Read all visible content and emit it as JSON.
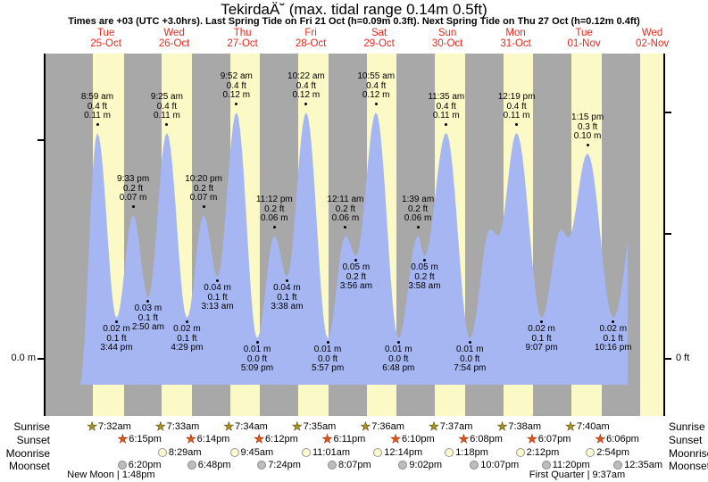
{
  "header": {
    "title": "TekirdaÄ˘ (max. tidal range 0.14m 0.5ft)",
    "subtitle": "Times are +03 (UTC +3.0hrs). Last Spring Tide on Fri 21 Oct (h=0.09m 0.3ft). Next Spring Tide on Thu 27 Oct (h=0.12m 0.4ft)"
  },
  "axes": {
    "left_zero_label": "0.0 m",
    "right_zero_label": "0 ft"
  },
  "chart_data": {
    "type": "area",
    "title": "TekirdaÄ˘ (max. tidal range 0.14m 0.5ft)",
    "ylabel_left": "0.0 m",
    "ylabel_right": "0 ft",
    "ylim_m": [
      -0.013,
      0.15
    ],
    "day_labels": [
      {
        "dow": "Tue",
        "date": "25-Oct"
      },
      {
        "dow": "Wed",
        "date": "26-Oct"
      },
      {
        "dow": "Thu",
        "date": "27-Oct"
      },
      {
        "dow": "Fri",
        "date": "28-Oct"
      },
      {
        "dow": "Sat",
        "date": "29-Oct"
      },
      {
        "dow": "Sun",
        "date": "30-Oct"
      },
      {
        "dow": "Mon",
        "date": "31-Oct"
      },
      {
        "dow": "Tue",
        "date": "01-Nov"
      },
      {
        "dow": "Wed",
        "date": "02-Nov"
      }
    ],
    "tide_events": [
      {
        "day": 0,
        "time": "8:59 am",
        "type": "high",
        "ft": "0.4",
        "m": "0.11"
      },
      {
        "day": 0,
        "time": "3:44 pm",
        "type": "low",
        "ft": "0.1",
        "m": "0.02"
      },
      {
        "day": 0,
        "time": "9:33 pm",
        "type": "high",
        "ft": "0.2",
        "m": "0.07"
      },
      {
        "day": 1,
        "time": "2:50 am",
        "type": "low",
        "ft": "0.1",
        "m": "0.03"
      },
      {
        "day": 1,
        "time": "9:25 am",
        "type": "high",
        "ft": "0.4",
        "m": "0.11"
      },
      {
        "day": 1,
        "time": "4:29 pm",
        "type": "low",
        "ft": "0.1",
        "m": "0.02"
      },
      {
        "day": 1,
        "time": "10:20 pm",
        "type": "high",
        "ft": "0.2",
        "m": "0.07"
      },
      {
        "day": 2,
        "time": "3:13 am",
        "type": "low",
        "ft": "0.1",
        "m": "0.04"
      },
      {
        "day": 2,
        "time": "9:52 am",
        "type": "high",
        "ft": "0.4",
        "m": "0.12"
      },
      {
        "day": 2,
        "time": "5:09 pm",
        "type": "low",
        "ft": "0.0",
        "m": "0.01"
      },
      {
        "day": 2,
        "time": "11:12 pm",
        "type": "high",
        "ft": "0.2",
        "m": "0.06"
      },
      {
        "day": 3,
        "time": "3:38 am",
        "type": "low",
        "ft": "0.1",
        "m": "0.04"
      },
      {
        "day": 3,
        "time": "10:22 am",
        "type": "high",
        "ft": "0.4",
        "m": "0.12"
      },
      {
        "day": 3,
        "time": "5:57 pm",
        "type": "low",
        "ft": "0.0",
        "m": "0.01"
      },
      {
        "day": 4,
        "time": "12:11 am",
        "type": "high",
        "ft": "0.2",
        "m": "0.06"
      },
      {
        "day": 4,
        "time": "3:56 am",
        "type": "low",
        "ft": "0.2",
        "m": "0.05"
      },
      {
        "day": 4,
        "time": "10:55 am",
        "type": "high",
        "ft": "0.4",
        "m": "0.12"
      },
      {
        "day": 4,
        "time": "6:48 pm",
        "type": "low",
        "ft": "0.0",
        "m": "0.01"
      },
      {
        "day": 5,
        "time": "1:39 am",
        "type": "high",
        "ft": "0.2",
        "m": "0.06"
      },
      {
        "day": 5,
        "time": "3:58 am",
        "type": "low",
        "ft": "0.2",
        "m": "0.05"
      },
      {
        "day": 5,
        "time": "11:35 am",
        "type": "high",
        "ft": "0.4",
        "m": "0.11"
      },
      {
        "day": 5,
        "time": "7:54 pm",
        "type": "low",
        "ft": "0.0",
        "m": "0.01"
      },
      {
        "day": 6,
        "time": "12:19 pm",
        "type": "high",
        "ft": "0.4",
        "m": "0.11"
      },
      {
        "day": 6,
        "time": "9:07 pm",
        "type": "low",
        "ft": "0.1",
        "m": "0.02"
      },
      {
        "day": 7,
        "time": "1:15 pm",
        "type": "high",
        "ft": "0.3",
        "m": "0.10"
      },
      {
        "day": 7,
        "time": "10:16 pm",
        "type": "low",
        "ft": "0.1",
        "m": "0.02"
      },
      {
        "day": 0,
        "time": "2:45 am",
        "h": -0.013,
        "shape": true
      },
      {
        "day": 6,
        "time": "3:00 am",
        "h": 0.063,
        "shape": true
      },
      {
        "day": 6,
        "time": "6:00 am",
        "h": 0.06,
        "shape": true
      },
      {
        "day": 7,
        "time": "4:00 am",
        "h": 0.063,
        "shape": true
      },
      {
        "day": 7,
        "time": "6:30 am",
        "h": 0.059,
        "shape": true
      },
      {
        "day": 8,
        "time": "8:05 am",
        "h": 0.09,
        "shape": true
      }
    ]
  },
  "sun_moon": {
    "row_labels": [
      "Sunrise",
      "Sunset",
      "Moonrise",
      "Moonset"
    ],
    "sunrise": [
      {
        "day": 0,
        "time": "7:32am"
      },
      {
        "day": 1,
        "time": "7:33am"
      },
      {
        "day": 2,
        "time": "7:34am"
      },
      {
        "day": 3,
        "time": "7:35am"
      },
      {
        "day": 4,
        "time": "7:36am"
      },
      {
        "day": 5,
        "time": "7:37am"
      },
      {
        "day": 6,
        "time": "7:38am"
      },
      {
        "day": 7,
        "time": "7:40am"
      }
    ],
    "sunset": [
      {
        "day": 0,
        "time": "6:15pm"
      },
      {
        "day": 1,
        "time": "6:14pm"
      },
      {
        "day": 2,
        "time": "6:12pm"
      },
      {
        "day": 3,
        "time": "6:11pm"
      },
      {
        "day": 4,
        "time": "6:10pm"
      },
      {
        "day": 5,
        "time": "6:08pm"
      },
      {
        "day": 6,
        "time": "6:07pm"
      },
      {
        "day": 7,
        "time": "6:06pm"
      }
    ],
    "moonrise": [
      {
        "day": 1,
        "time": "8:29am"
      },
      {
        "day": 2,
        "time": "9:45am"
      },
      {
        "day": 3,
        "time": "11:01am"
      },
      {
        "day": 4,
        "time": "12:14pm"
      },
      {
        "day": 5,
        "time": "1:18pm"
      },
      {
        "day": 6,
        "time": "2:12pm"
      },
      {
        "day": 7,
        "time": "2:54pm"
      }
    ],
    "moonset": [
      {
        "day": 0,
        "time": "6:20pm"
      },
      {
        "day": 1,
        "time": "6:48pm"
      },
      {
        "day": 2,
        "time": "7:24pm"
      },
      {
        "day": 3,
        "time": "8:07pm"
      },
      {
        "day": 4,
        "time": "9:02pm"
      },
      {
        "day": 5,
        "time": "10:07pm"
      },
      {
        "day": 6,
        "time": "11:20pm"
      },
      {
        "day": 8,
        "time": "12:35am"
      }
    ],
    "moon_phases": [
      {
        "day": 0,
        "time": "1:48pm",
        "label": "New Moon"
      },
      {
        "day": 7,
        "time": "9:37am",
        "label": "First Quarter"
      }
    ]
  },
  "colors": {
    "night_band": "#a8a8a8",
    "day_band": "#fbf9c6",
    "tide_fill": "#a6b6f3",
    "day_label_red": "#e5291e"
  }
}
